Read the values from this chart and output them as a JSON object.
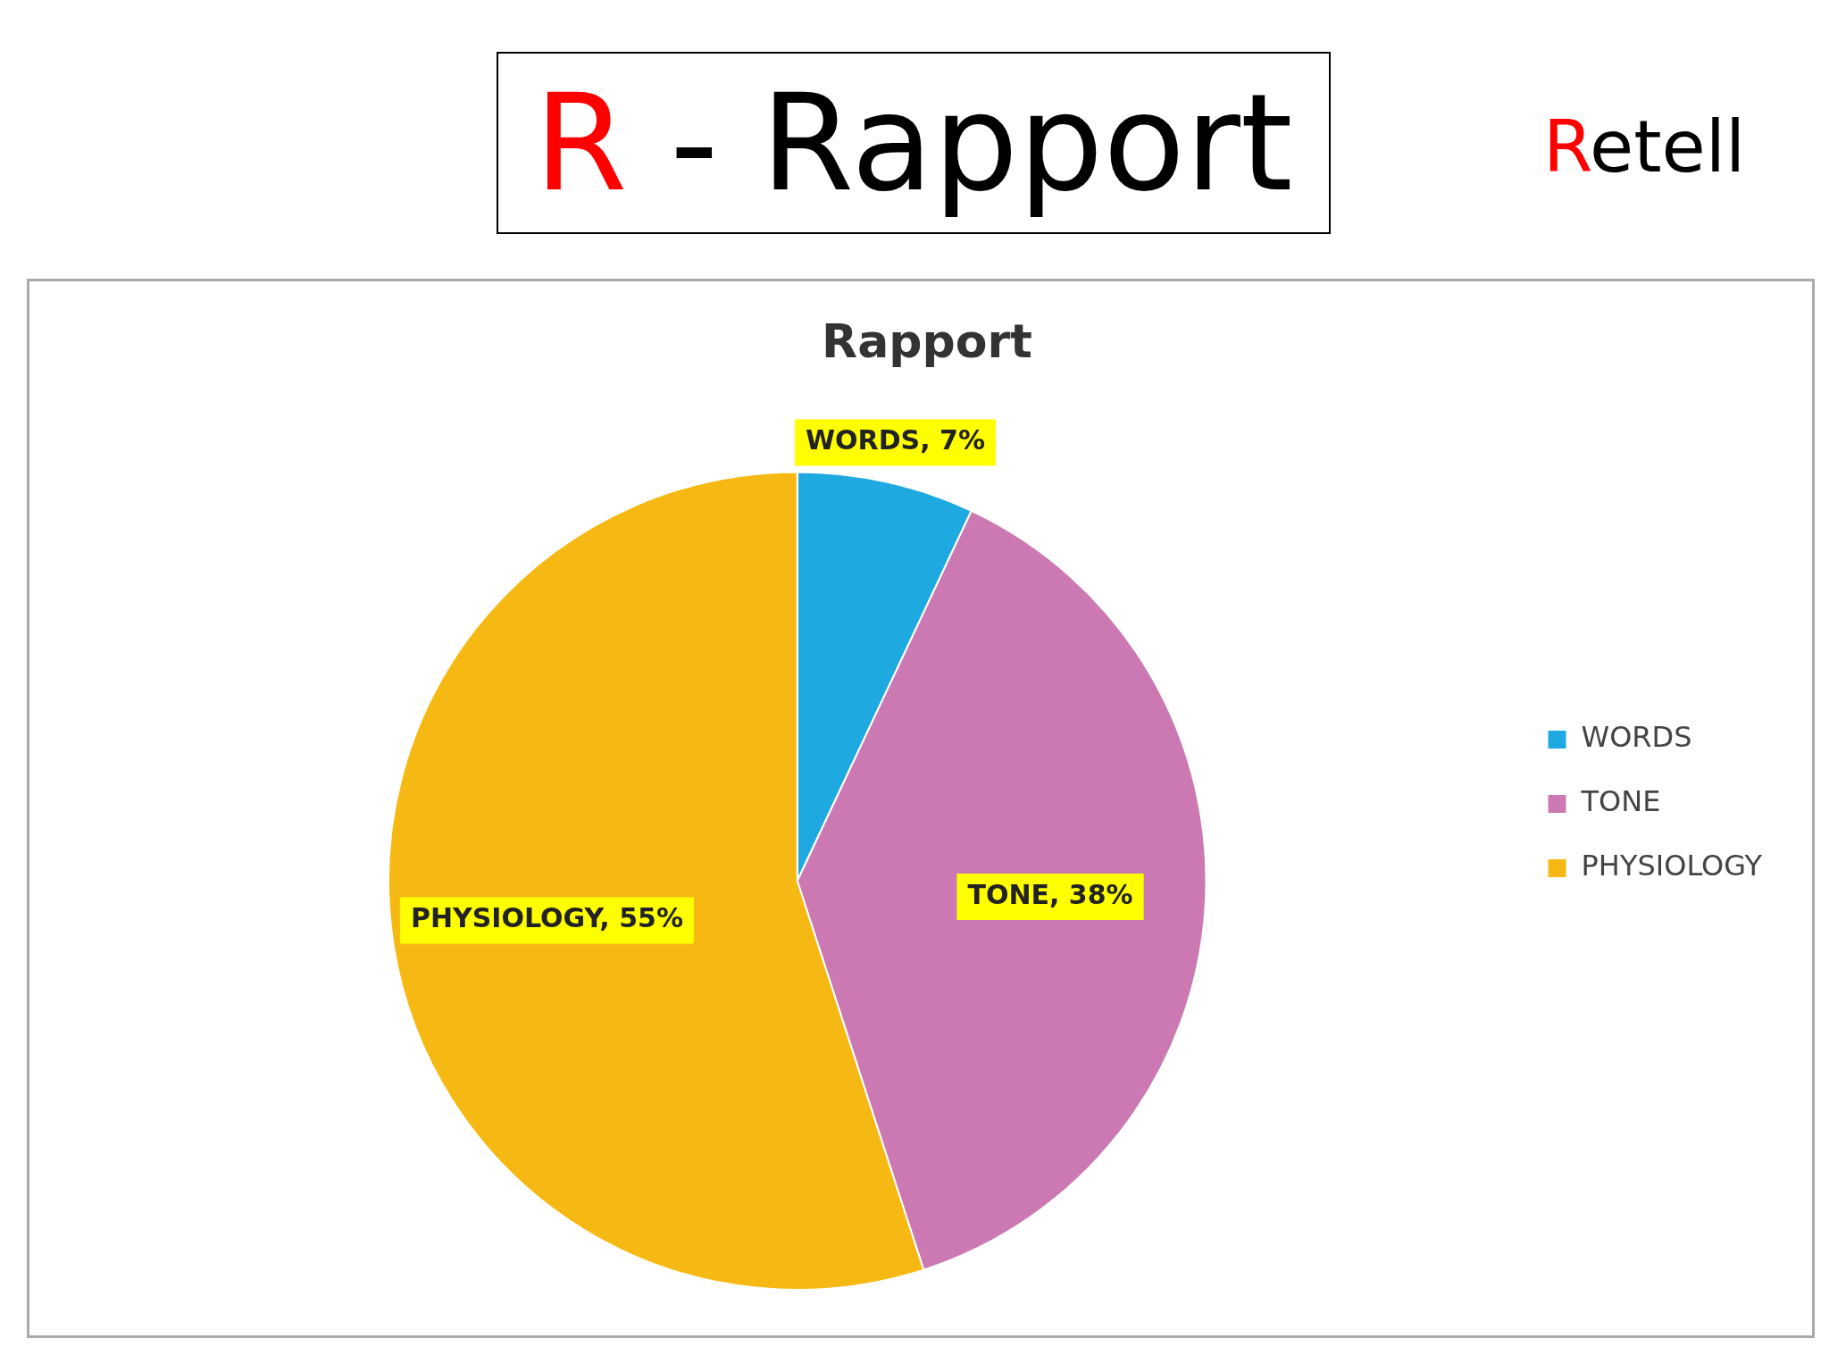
{
  "chart_data": {
    "type": "pie",
    "title": "R - Rapport",
    "subtitle": "Rapport",
    "annotations": [
      "Retell"
    ],
    "categories": [
      "WORDS",
      "TONE",
      "PHYSIOLOGY"
    ],
    "values": [
      7,
      38,
      55
    ],
    "colors": [
      "#1fa9e1",
      "#cc79b3",
      "#f6b914"
    ],
    "value_labels": [
      "WORDS, 7%",
      "TONE, 38%",
      "PHYSIOLOGY, 55%"
    ],
    "legend": "right"
  }
}
